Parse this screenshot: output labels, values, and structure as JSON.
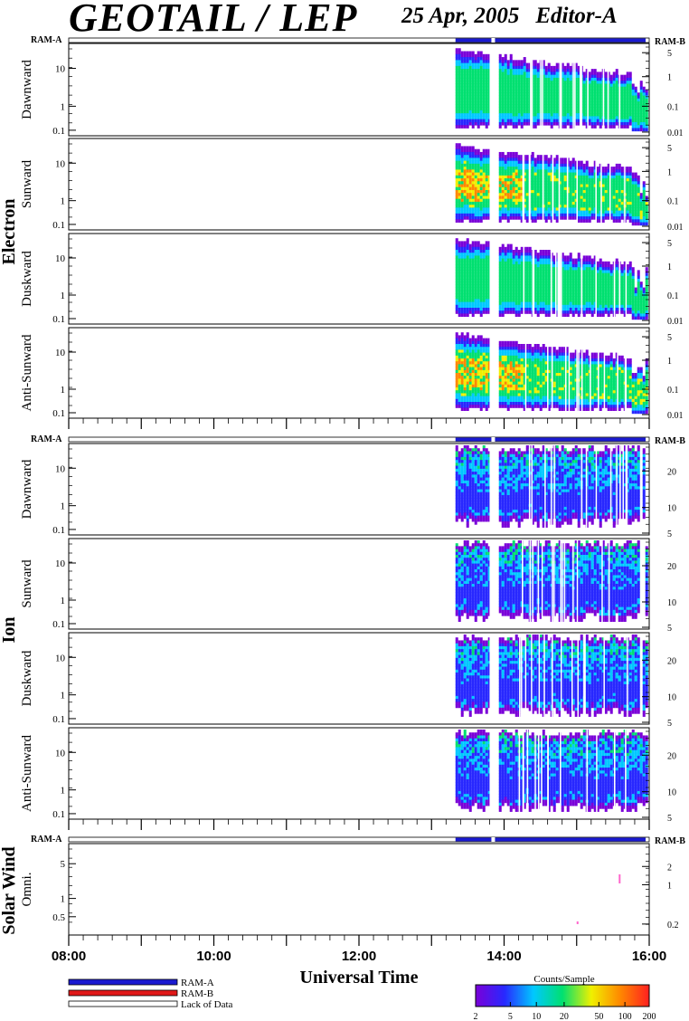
{
  "header": {
    "title": "GEOTAIL / LEP",
    "date": "25 Apr, 2005",
    "editor": "Editor-A"
  },
  "chart_data": {
    "type": "heatmap",
    "xlabel": "Universal Time",
    "x_ticks": [
      "08:00",
      "10:00",
      "12:00",
      "14:00",
      "16:00"
    ],
    "x_range_hours": [
      8,
      16
    ],
    "data_coverage_hours": [
      13.33,
      15.95
    ],
    "data_gap_hours": [
      13.8,
      13.9
    ],
    "groups": [
      {
        "name": "Electron",
        "ram_a_label": "RAM-A",
        "ram_b_label": "RAM-B",
        "panels": [
          {
            "label": "Dawnward",
            "left_ticks": [
              "10",
              "1",
              "0.1"
            ],
            "right_ticks": [
              "5",
              "1",
              "0.1",
              "0.01"
            ]
          },
          {
            "label": "Sunward",
            "left_ticks": [
              "10",
              "1",
              "0.1"
            ],
            "right_ticks": [
              "5",
              "1",
              "0.1",
              "0.01"
            ]
          },
          {
            "label": "Duskward",
            "left_ticks": [
              "10",
              "1",
              "0.1"
            ],
            "right_ticks": [
              "5",
              "1",
              "0.1",
              "0.01"
            ]
          },
          {
            "label": "Anti-Sunward",
            "left_ticks": [
              "10",
              "1",
              "0.1"
            ],
            "right_ticks": [
              "5",
              "1",
              "0.1",
              "0.01"
            ]
          }
        ]
      },
      {
        "name": "Ion",
        "ram_a_label": "RAM-A",
        "ram_b_label": "RAM-B",
        "panels": [
          {
            "label": "Dawnward",
            "left_ticks": [
              "10",
              "1",
              "0.1"
            ],
            "right_ticks": [
              "20",
              "10",
              "5"
            ]
          },
          {
            "label": "Sunward",
            "left_ticks": [
              "10",
              "1",
              "0.1"
            ],
            "right_ticks": [
              "20",
              "10",
              "5"
            ]
          },
          {
            "label": "Duskward",
            "left_ticks": [
              "10",
              "1",
              "0.1"
            ],
            "right_ticks": [
              "20",
              "10",
              "5"
            ]
          },
          {
            "label": "Anti-Sunward",
            "left_ticks": [
              "10",
              "1",
              "0.1"
            ],
            "right_ticks": [
              "20",
              "10",
              "5"
            ]
          }
        ]
      },
      {
        "name": "Solar Wind",
        "ram_a_label": "RAM-A",
        "ram_b_label": "RAM-B",
        "panels": [
          {
            "label": "Omni.",
            "left_ticks": [
              "5",
              "1",
              "0.5"
            ],
            "right_ticks": [
              "2",
              "1",
              "0.2"
            ]
          }
        ]
      }
    ],
    "legend": {
      "items": [
        {
          "label": "RAM-A",
          "color": "#1a1ad0"
        },
        {
          "label": "RAM-B",
          "color": "#e01818"
        },
        {
          "label": "Lack of Data",
          "color": "#ffffff"
        }
      ]
    },
    "colorbar": {
      "title": "Counts/Sample",
      "ticks": [
        "2",
        "5",
        "10",
        "20",
        "50",
        "100",
        "200"
      ],
      "colors": [
        "#7a00d8",
        "#2828ff",
        "#00c8ff",
        "#00e070",
        "#f0f000",
        "#ff8800",
        "#ff2020"
      ]
    }
  }
}
